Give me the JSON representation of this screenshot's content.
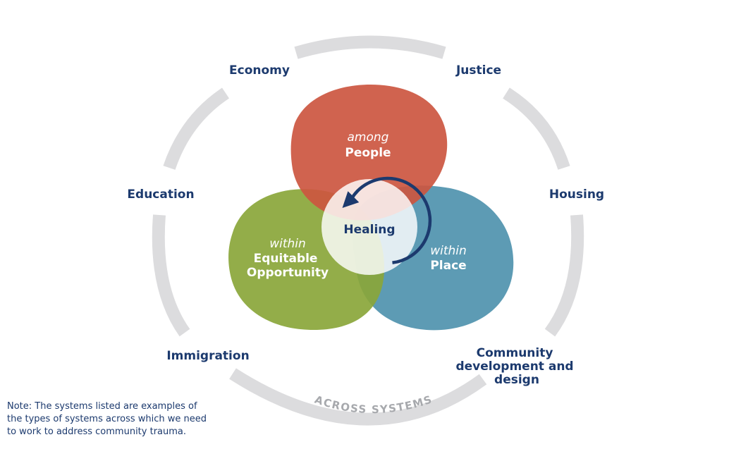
{
  "systems": {
    "economy": "Economy",
    "justice": "Justice",
    "education": "Education",
    "housing": "Housing",
    "immigration": "Immigration",
    "community": [
      "Community",
      "development and",
      "design"
    ]
  },
  "ring_label": "ACROSS SYSTEMS",
  "petals": {
    "people": {
      "italic": "among",
      "bold": "People",
      "color": "#cc5640"
    },
    "opportunity": {
      "italic": "within",
      "bold": [
        "Equitable",
        "Opportunity"
      ],
      "color": "#8aa63a"
    },
    "place": {
      "italic": "within",
      "bold": "Place",
      "color": "#4f93ae"
    }
  },
  "center": {
    "label": "Healing",
    "color": "#1c3a6e"
  },
  "note": [
    "Note: The systems listed are examples of",
    "the types of systems across which we need",
    "to work to address community trauma."
  ],
  "colors": {
    "ring": "#dcdcde",
    "text": "#1c3a6e"
  }
}
